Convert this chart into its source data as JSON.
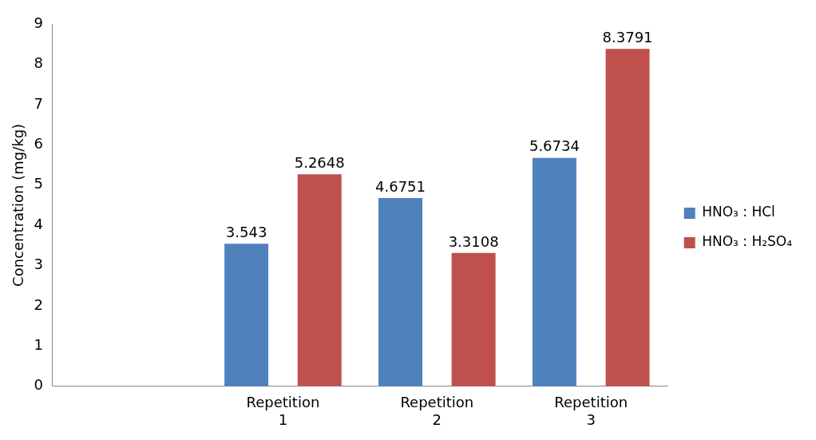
{
  "chart_data": {
    "type": "bar",
    "ylabel": "Concentration (mg/kg)",
    "categories": [
      null,
      "Repetition 1",
      "Repetition 2",
      "Repetition 3"
    ],
    "series": [
      {
        "name": "HNO₃ : HCl",
        "color": "#4f81bd",
        "values": [
          null,
          3.543,
          4.6751,
          5.6734
        ]
      },
      {
        "name": "HNO₃ : H₂SO₄",
        "color": "#c0504d",
        "values": [
          null,
          5.2648,
          3.3108,
          8.3791
        ]
      }
    ],
    "ylim": [
      0,
      9
    ],
    "yticks": [
      0,
      1,
      2,
      3,
      4,
      5,
      6,
      7,
      8,
      9
    ],
    "grid": false,
    "legend": "right",
    "data_labels": true
  }
}
